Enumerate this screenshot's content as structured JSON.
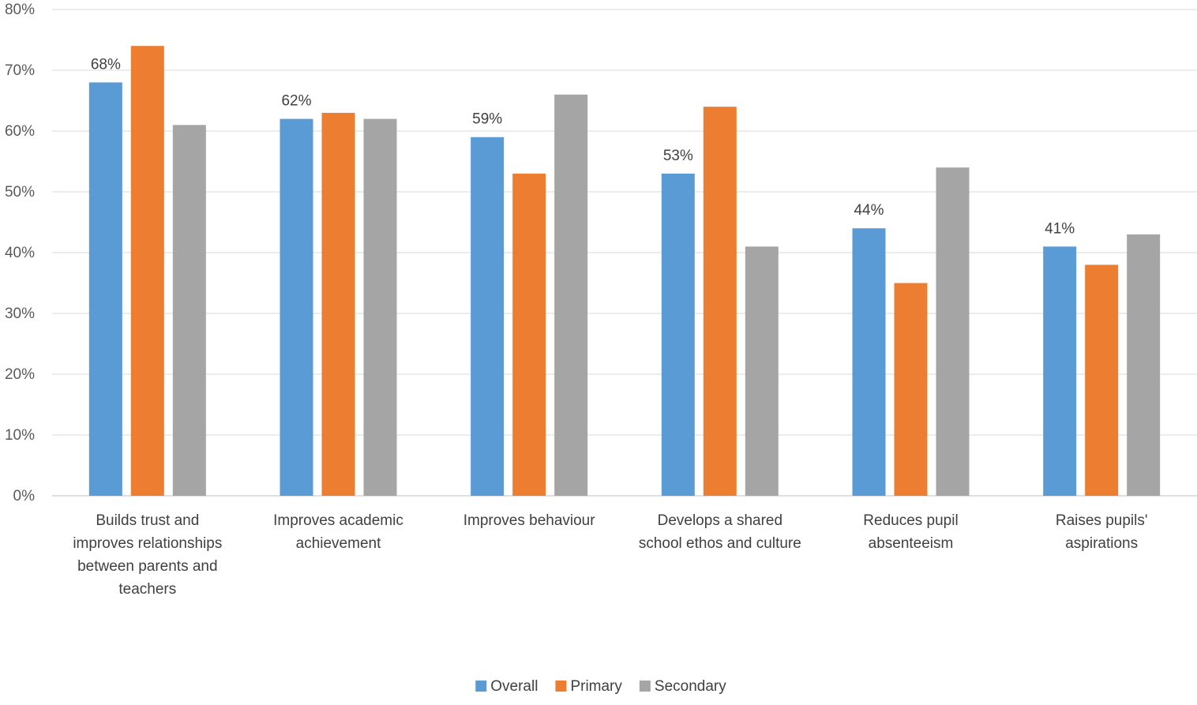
{
  "chart_data": {
    "type": "bar",
    "title": "",
    "xlabel": "",
    "ylabel": "",
    "ylim": [
      0,
      80
    ],
    "yticks": [
      "0%",
      "10%",
      "20%",
      "30%",
      "40%",
      "50%",
      "60%",
      "70%",
      "80%"
    ],
    "grid": true,
    "legend_position": "bottom",
    "categories": [
      [
        "Builds trust and",
        "improves relationships",
        "between parents and",
        "teachers"
      ],
      [
        "Improves academic",
        "achievement"
      ],
      [
        "Improves behaviour"
      ],
      [
        "Develops a shared",
        "school ethos and culture"
      ],
      [
        "Reduces pupil",
        "absenteeism"
      ],
      [
        "Raises pupils'",
        "aspirations"
      ]
    ],
    "series": [
      {
        "name": "Overall",
        "color": "#5B9BD5",
        "values": [
          68,
          62,
          59,
          53,
          44,
          41
        ]
      },
      {
        "name": "Primary",
        "color": "#ED7D31",
        "values": [
          74,
          63,
          53,
          64,
          35,
          38
        ]
      },
      {
        "name": "Secondary",
        "color": "#A5A5A5",
        "values": [
          61,
          62,
          66,
          41,
          54,
          43
        ]
      }
    ],
    "data_labels": {
      "series": "Overall",
      "texts": [
        "68%",
        "62%",
        "59%",
        "53%",
        "44%",
        "41%"
      ]
    }
  }
}
